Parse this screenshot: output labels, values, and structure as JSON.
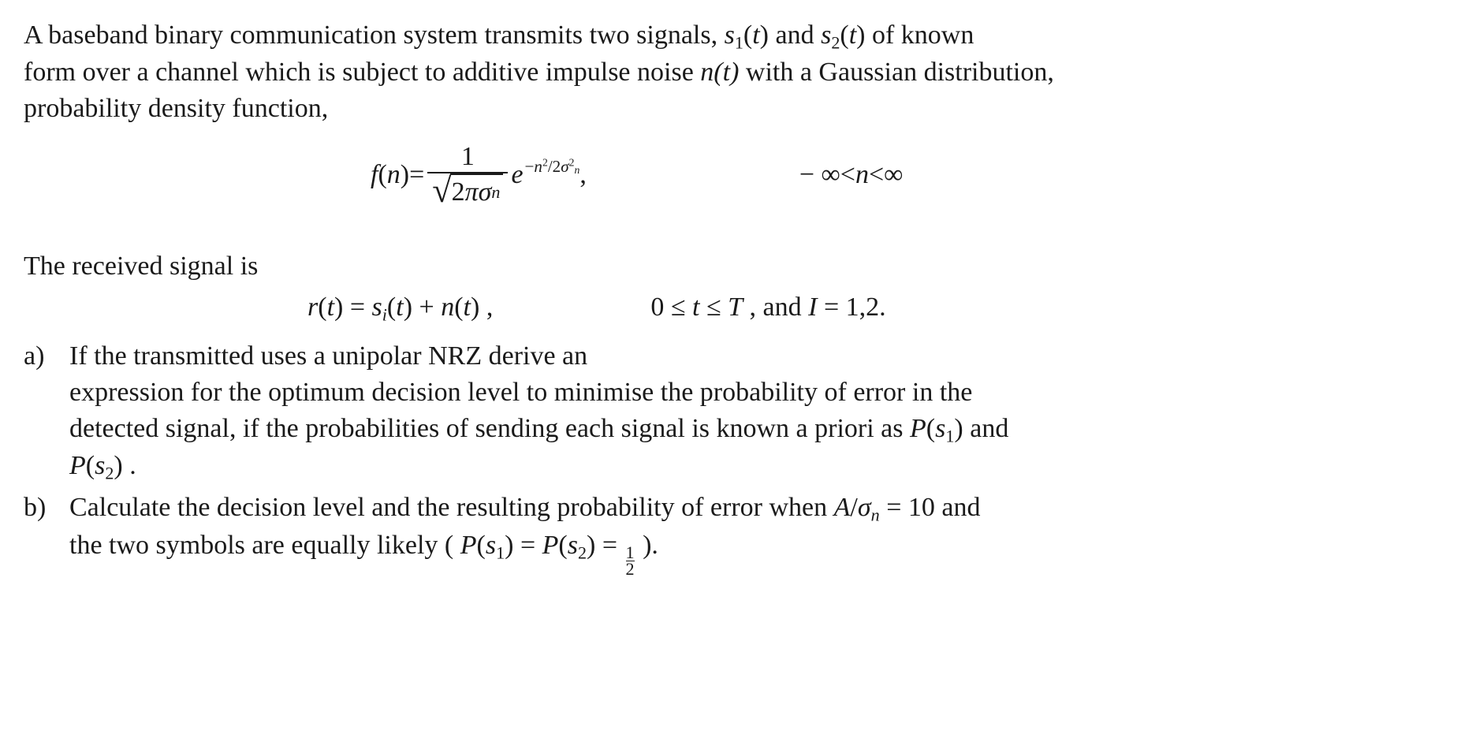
{
  "intro": {
    "l1a": "A baseband binary communication system transmits two signals, ",
    "l1b": " and ",
    "l1c": " of known",
    "l2": "form over a channel which is subject to additive impulse noise ",
    "nt": "n(t)",
    "l2b": " with a  Gaussian distribution,",
    "l3": "probability density function,"
  },
  "sym": {
    "s": "s",
    "t": "t",
    "one": "1",
    "two": "2",
    "f": "f",
    "n": "n",
    "eq": " = ",
    "pi": "π",
    "sigma": "σ",
    "e": "e",
    "lp": "(",
    "rp": ")",
    "minus": "−",
    "inf": "∞",
    "lt": " < ",
    "slash": "/",
    "two_up": "2",
    "comma_sp": " ,",
    "r": "r",
    "i_sub": "i",
    "plus": " + ",
    "zero": "0",
    "le": " ≤ ",
    "T": "T",
    "and_I": " , and ",
    "I": "I",
    "eq12": " = 1,2.",
    "P": "P",
    "A": "A",
    "eq_ten": " = 10",
    "half_top": "1",
    "half_bot": "2",
    "root": "√"
  },
  "received": {
    "intro": "The received signal is"
  },
  "qa": {
    "marker": "a)",
    "l1": "If the transmitted uses a  unipolar NRZ  derive an",
    "l2": "expression for the optimum decision level to minimise the probability of error in the",
    "l3a": "detected signal, if the probabilities of sending each signal is known a priori as  ",
    "l3b": " and",
    "l4_end": "."
  },
  "qb": {
    "marker": "b)",
    "l1a": "Calculate the decision level and the resulting probability of error when  ",
    "l1b": "  and",
    "l2a": "the two symbols are equally likely ( ",
    "l2b": " )."
  },
  "style": {
    "text_color": "#1a1a1a",
    "bg": "#ffffff",
    "font_family": "Times New Roman",
    "font_size_pt": 26
  }
}
